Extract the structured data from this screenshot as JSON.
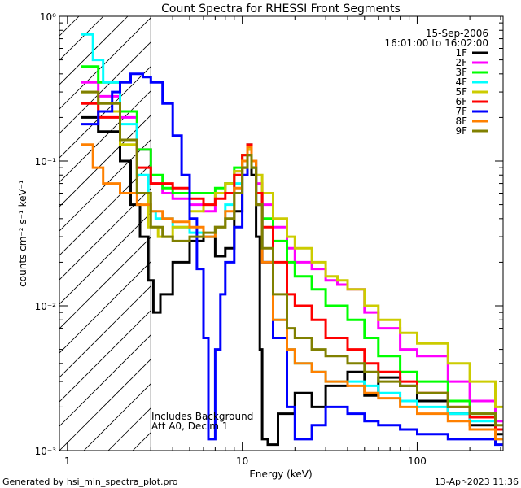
{
  "chart_data": {
    "type": "line",
    "title": "Count Spectra for RHESSI Front Segments",
    "xlabel": "Energy (keV)",
    "ylabel": "counts cm⁻² s⁻¹ keV⁻¹",
    "x_scale": "log",
    "y_scale": "log",
    "xlim": [
      0.9,
      310
    ],
    "ylim": [
      0.001,
      1.0
    ],
    "x_ticks": [
      {
        "value": 1,
        "label": "1"
      },
      {
        "value": 10,
        "label": "10"
      },
      {
        "value": 100,
        "label": "100"
      }
    ],
    "y_ticks": [
      {
        "value": 1.0,
        "label": "10⁰"
      },
      {
        "value": 0.1,
        "label": "10⁻¹"
      },
      {
        "value": 0.01,
        "label": "10⁻²"
      },
      {
        "value": 0.001,
        "label": "10⁻³"
      }
    ],
    "date": "15-Sep-2006",
    "time_range": "16:01:00 to 16:02:00",
    "hatched_region_below_keV": 3,
    "annotations": [
      "Includes Background",
      "Att A0, Decim 1"
    ],
    "footer_left": "Generated by hsi_min_spectra_plot.pro",
    "footer_right": "13-Apr-2023 11:36",
    "series": [
      {
        "name": "1F",
        "color": "#000000",
        "points": [
          [
            1.2,
            0.2
          ],
          [
            1.5,
            0.16
          ],
          [
            2.0,
            0.1
          ],
          [
            2.3,
            0.05
          ],
          [
            2.6,
            0.03
          ],
          [
            2.9,
            0.015
          ],
          [
            3.1,
            0.009
          ],
          [
            3.4,
            0.012
          ],
          [
            4.0,
            0.02
          ],
          [
            5.0,
            0.028
          ],
          [
            6.0,
            0.03
          ],
          [
            7.0,
            0.022
          ],
          [
            8.0,
            0.025
          ],
          [
            9.0,
            0.045
          ],
          [
            10.0,
            0.09
          ],
          [
            10.7,
            0.11
          ],
          [
            11.3,
            0.08
          ],
          [
            12.0,
            0.03
          ],
          [
            12.6,
            0.005
          ],
          [
            13.0,
            0.0012
          ],
          [
            14,
            0.0011
          ],
          [
            16,
            0.0018
          ],
          [
            20,
            0.0025
          ],
          [
            25,
            0.002
          ],
          [
            30,
            0.0028
          ],
          [
            40,
            0.0035
          ],
          [
            50,
            0.0024
          ],
          [
            60,
            0.0032
          ],
          [
            80,
            0.0028
          ],
          [
            100,
            0.0022
          ],
          [
            150,
            0.0018
          ],
          [
            200,
            0.0015
          ],
          [
            280,
            0.0013
          ]
        ]
      },
      {
        "name": "2F",
        "color": "#ff00ff",
        "points": [
          [
            1.2,
            0.35
          ],
          [
            1.5,
            0.28
          ],
          [
            2.0,
            0.2
          ],
          [
            2.5,
            0.12
          ],
          [
            3.0,
            0.07
          ],
          [
            3.5,
            0.06
          ],
          [
            4.0,
            0.055
          ],
          [
            5.0,
            0.05
          ],
          [
            6.0,
            0.045
          ],
          [
            7.0,
            0.06
          ],
          [
            8.0,
            0.07
          ],
          [
            9.0,
            0.085
          ],
          [
            10.0,
            0.11
          ],
          [
            10.7,
            0.12
          ],
          [
            11.3,
            0.1
          ],
          [
            12.0,
            0.07
          ],
          [
            13.0,
            0.05
          ],
          [
            15,
            0.035
          ],
          [
            18,
            0.025
          ],
          [
            20,
            0.02
          ],
          [
            25,
            0.018
          ],
          [
            30,
            0.015
          ],
          [
            35,
            0.014
          ],
          [
            40,
            0.013
          ],
          [
            50,
            0.009
          ],
          [
            60,
            0.007
          ],
          [
            80,
            0.005
          ],
          [
            100,
            0.0045
          ],
          [
            150,
            0.003
          ],
          [
            200,
            0.0022
          ],
          [
            280,
            0.0016
          ]
        ]
      },
      {
        "name": "3F",
        "color": "#00ff00",
        "points": [
          [
            1.2,
            0.45
          ],
          [
            1.5,
            0.35
          ],
          [
            2.0,
            0.22
          ],
          [
            2.5,
            0.12
          ],
          [
            3.0,
            0.08
          ],
          [
            3.5,
            0.065
          ],
          [
            4.0,
            0.06
          ],
          [
            5.0,
            0.06
          ],
          [
            6.0,
            0.06
          ],
          [
            7.0,
            0.065
          ],
          [
            8.0,
            0.07
          ],
          [
            9.0,
            0.09
          ],
          [
            10.0,
            0.11
          ],
          [
            10.7,
            0.12
          ],
          [
            11.3,
            0.09
          ],
          [
            12.0,
            0.06
          ],
          [
            13.0,
            0.04
          ],
          [
            15,
            0.028
          ],
          [
            18,
            0.02
          ],
          [
            20,
            0.016
          ],
          [
            25,
            0.013
          ],
          [
            30,
            0.01
          ],
          [
            40,
            0.008
          ],
          [
            50,
            0.006
          ],
          [
            60,
            0.0045
          ],
          [
            80,
            0.0035
          ],
          [
            100,
            0.003
          ],
          [
            150,
            0.0022
          ],
          [
            200,
            0.0018
          ],
          [
            280,
            0.0014
          ]
        ]
      },
      {
        "name": "4F",
        "color": "#00ffff",
        "points": [
          [
            1.2,
            0.75
          ],
          [
            1.4,
            0.5
          ],
          [
            1.6,
            0.35
          ],
          [
            2.0,
            0.18
          ],
          [
            2.5,
            0.08
          ],
          [
            2.9,
            0.045
          ],
          [
            3.2,
            0.04
          ],
          [
            4.0,
            0.035
          ],
          [
            5.0,
            0.032
          ],
          [
            6.0,
            0.03
          ],
          [
            7.0,
            0.035
          ],
          [
            8.0,
            0.05
          ],
          [
            9.0,
            0.07
          ],
          [
            10.0,
            0.1
          ],
          [
            10.7,
            0.13
          ],
          [
            11.3,
            0.1
          ],
          [
            12.0,
            0.05
          ],
          [
            13.0,
            0.02
          ],
          [
            15,
            0.008
          ],
          [
            18,
            0.005
          ],
          [
            20,
            0.004
          ],
          [
            25,
            0.0035
          ],
          [
            30,
            0.003
          ],
          [
            40,
            0.003
          ],
          [
            50,
            0.0028
          ],
          [
            60,
            0.0025
          ],
          [
            80,
            0.0022
          ],
          [
            100,
            0.002
          ],
          [
            150,
            0.0018
          ],
          [
            200,
            0.0016
          ],
          [
            280,
            0.0014
          ]
        ]
      },
      {
        "name": "5F",
        "color": "#cccc00",
        "points": [
          [
            1.2,
            0.3
          ],
          [
            1.5,
            0.22
          ],
          [
            2.0,
            0.13
          ],
          [
            2.5,
            0.06
          ],
          [
            2.9,
            0.035
          ],
          [
            3.3,
            0.03
          ],
          [
            4.0,
            0.035
          ],
          [
            5.0,
            0.045
          ],
          [
            6.0,
            0.05
          ],
          [
            7.0,
            0.06
          ],
          [
            8.0,
            0.07
          ],
          [
            9.0,
            0.085
          ],
          [
            10.0,
            0.11
          ],
          [
            10.7,
            0.12
          ],
          [
            11.3,
            0.1
          ],
          [
            12.0,
            0.08
          ],
          [
            13.0,
            0.06
          ],
          [
            15,
            0.04
          ],
          [
            18,
            0.03
          ],
          [
            20,
            0.025
          ],
          [
            25,
            0.02
          ],
          [
            30,
            0.016
          ],
          [
            35,
            0.015
          ],
          [
            40,
            0.013
          ],
          [
            50,
            0.01
          ],
          [
            60,
            0.008
          ],
          [
            80,
            0.0065
          ],
          [
            100,
            0.0055
          ],
          [
            150,
            0.004
          ],
          [
            200,
            0.003
          ],
          [
            280,
            0.002
          ]
        ]
      },
      {
        "name": "6F",
        "color": "#ff0000",
        "points": [
          [
            1.2,
            0.25
          ],
          [
            1.5,
            0.2
          ],
          [
            2.0,
            0.14
          ],
          [
            2.5,
            0.09
          ],
          [
            3.0,
            0.07
          ],
          [
            3.5,
            0.07
          ],
          [
            4.0,
            0.065
          ],
          [
            5.0,
            0.055
          ],
          [
            6.0,
            0.05
          ],
          [
            7.0,
            0.055
          ],
          [
            8.0,
            0.06
          ],
          [
            9.0,
            0.08
          ],
          [
            10.0,
            0.11
          ],
          [
            10.7,
            0.13
          ],
          [
            11.3,
            0.1
          ],
          [
            12.0,
            0.06
          ],
          [
            13.0,
            0.035
          ],
          [
            15,
            0.02
          ],
          [
            18,
            0.012
          ],
          [
            20,
            0.01
          ],
          [
            25,
            0.008
          ],
          [
            30,
            0.006
          ],
          [
            40,
            0.005
          ],
          [
            50,
            0.004
          ],
          [
            60,
            0.0035
          ],
          [
            80,
            0.003
          ],
          [
            100,
            0.0025
          ],
          [
            150,
            0.002
          ],
          [
            200,
            0.0017
          ],
          [
            280,
            0.0014
          ]
        ]
      },
      {
        "name": "7F",
        "color": "#0000ff",
        "points": [
          [
            1.2,
            0.18
          ],
          [
            1.5,
            0.22
          ],
          [
            1.8,
            0.3
          ],
          [
            2.0,
            0.35
          ],
          [
            2.3,
            0.4
          ],
          [
            2.7,
            0.38
          ],
          [
            3.0,
            0.35
          ],
          [
            3.5,
            0.25
          ],
          [
            4.0,
            0.15
          ],
          [
            4.5,
            0.08
          ],
          [
            5.0,
            0.04
          ],
          [
            5.5,
            0.018
          ],
          [
            6.0,
            0.006
          ],
          [
            6.4,
            0.0012
          ],
          [
            7.0,
            0.005
          ],
          [
            7.5,
            0.012
          ],
          [
            8.0,
            0.02
          ],
          [
            9.0,
            0.035
          ],
          [
            10.0,
            0.08
          ],
          [
            10.7,
            0.11
          ],
          [
            11.3,
            0.09
          ],
          [
            12.0,
            0.05
          ],
          [
            13.0,
            0.02
          ],
          [
            15,
            0.006
          ],
          [
            18,
            0.002
          ],
          [
            20,
            0.0012
          ],
          [
            25,
            0.0015
          ],
          [
            30,
            0.002
          ],
          [
            40,
            0.0018
          ],
          [
            50,
            0.0016
          ],
          [
            60,
            0.0015
          ],
          [
            80,
            0.0014
          ],
          [
            100,
            0.0013
          ],
          [
            150,
            0.0012
          ],
          [
            200,
            0.0012
          ],
          [
            280,
            0.0011
          ]
        ]
      },
      {
        "name": "8F",
        "color": "#ff8000",
        "points": [
          [
            1.2,
            0.13
          ],
          [
            1.4,
            0.09
          ],
          [
            1.6,
            0.07
          ],
          [
            2.0,
            0.06
          ],
          [
            2.5,
            0.05
          ],
          [
            3.0,
            0.045
          ],
          [
            3.5,
            0.04
          ],
          [
            4.0,
            0.038
          ],
          [
            5.0,
            0.035
          ],
          [
            6.0,
            0.03
          ],
          [
            7.0,
            0.035
          ],
          [
            8.0,
            0.045
          ],
          [
            9.0,
            0.065
          ],
          [
            10.0,
            0.1
          ],
          [
            10.7,
            0.125
          ],
          [
            11.3,
            0.1
          ],
          [
            12.0,
            0.05
          ],
          [
            13.0,
            0.02
          ],
          [
            15,
            0.008
          ],
          [
            18,
            0.005
          ],
          [
            20,
            0.004
          ],
          [
            25,
            0.0035
          ],
          [
            30,
            0.003
          ],
          [
            40,
            0.0028
          ],
          [
            50,
            0.0025
          ],
          [
            60,
            0.0023
          ],
          [
            80,
            0.002
          ],
          [
            100,
            0.0018
          ],
          [
            150,
            0.0016
          ],
          [
            200,
            0.0014
          ],
          [
            280,
            0.0012
          ]
        ]
      },
      {
        "name": "9F",
        "color": "#808000",
        "points": [
          [
            1.2,
            0.3
          ],
          [
            1.5,
            0.25
          ],
          [
            2.0,
            0.14
          ],
          [
            2.5,
            0.06
          ],
          [
            3.0,
            0.035
          ],
          [
            3.5,
            0.03
          ],
          [
            4.0,
            0.028
          ],
          [
            5.0,
            0.03
          ],
          [
            6.0,
            0.032
          ],
          [
            7.0,
            0.035
          ],
          [
            8.0,
            0.04
          ],
          [
            9.0,
            0.06
          ],
          [
            10.0,
            0.09
          ],
          [
            10.7,
            0.11
          ],
          [
            11.3,
            0.09
          ],
          [
            12.0,
            0.05
          ],
          [
            13.0,
            0.025
          ],
          [
            15,
            0.012
          ],
          [
            18,
            0.007
          ],
          [
            20,
            0.006
          ],
          [
            25,
            0.005
          ],
          [
            30,
            0.0045
          ],
          [
            40,
            0.004
          ],
          [
            50,
            0.0035
          ],
          [
            60,
            0.003
          ],
          [
            80,
            0.0028
          ],
          [
            100,
            0.0025
          ],
          [
            150,
            0.002
          ],
          [
            200,
            0.0018
          ],
          [
            280,
            0.0015
          ]
        ]
      }
    ]
  }
}
